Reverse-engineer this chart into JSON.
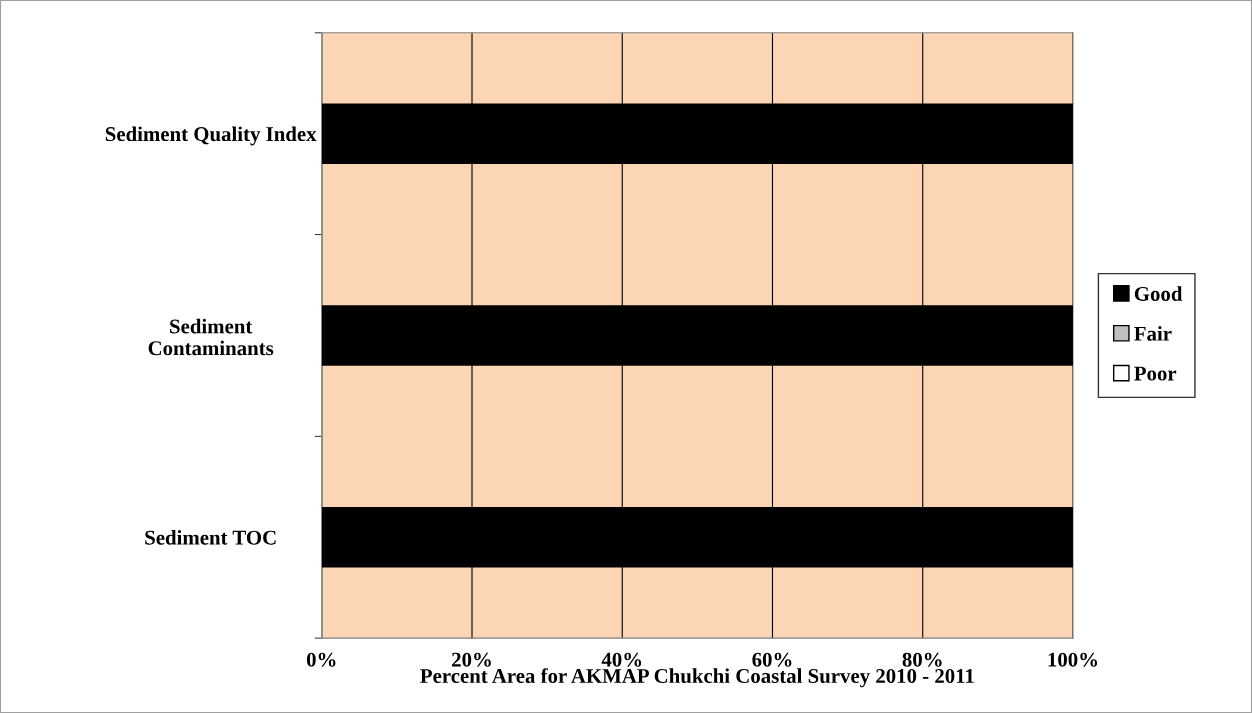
{
  "chart_data": {
    "type": "bar",
    "orientation": "horizontal",
    "stacked": true,
    "xlabel": "Percent Area for AKMAP Chukchi Coastal Survey 2010 - 2011",
    "categories": [
      "Sediment Quality Index",
      "Sediment\nContaminants",
      "Sediment TOC"
    ],
    "series": [
      {
        "name": "Good",
        "color": "#000000",
        "values": [
          100,
          100,
          100
        ]
      },
      {
        "name": "Fair",
        "color": "#c0c0c0",
        "values": [
          0,
          0,
          0
        ]
      },
      {
        "name": "Poor",
        "color": "#ffffff",
        "values": [
          0,
          0,
          0
        ]
      }
    ],
    "xlim": [
      0,
      100
    ],
    "xticks": [
      {
        "value": 0,
        "label": "0%"
      },
      {
        "value": 20,
        "label": "20%"
      },
      {
        "value": 40,
        "label": "40%"
      },
      {
        "value": 60,
        "label": "60%"
      },
      {
        "value": 80,
        "label": "80%"
      },
      {
        "value": 100,
        "label": "100%"
      }
    ],
    "grid": "x",
    "legend": "right"
  }
}
